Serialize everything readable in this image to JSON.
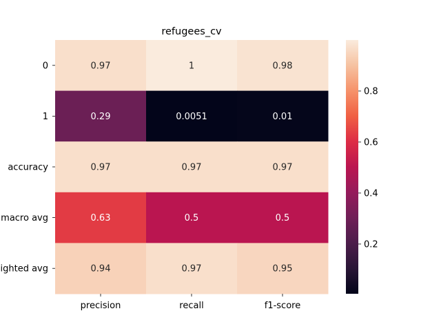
{
  "chart_data": {
    "type": "heatmap",
    "title": "refugees_cv",
    "xlabel": "",
    "ylabel": "",
    "columns": [
      "precision",
      "recall",
      "f1-score"
    ],
    "rows": [
      "0",
      "1",
      "accuracy",
      "macro avg",
      "weighted avg"
    ],
    "values": [
      [
        0.97,
        1.0,
        0.98
      ],
      [
        0.29,
        0.0051,
        0.01
      ],
      [
        0.97,
        0.97,
        0.97
      ],
      [
        0.63,
        0.5,
        0.5
      ],
      [
        0.94,
        0.97,
        0.95
      ]
    ],
    "annotations": [
      [
        "0.97",
        "1",
        "0.98"
      ],
      [
        "0.29",
        "0.0051",
        "0.01"
      ],
      [
        "0.97",
        "0.97",
        "0.97"
      ],
      [
        "0.63",
        "0.5",
        "0.5"
      ],
      [
        "0.94",
        "0.97",
        "0.95"
      ]
    ],
    "colormap": "rocket",
    "vmin": 0.0051,
    "vmax": 1.0,
    "colorbar_ticks": [
      "0.2",
      "0.4",
      "0.6",
      "0.8"
    ],
    "colorbar_tick_values": [
      0.2,
      0.4,
      0.6,
      0.8
    ]
  }
}
